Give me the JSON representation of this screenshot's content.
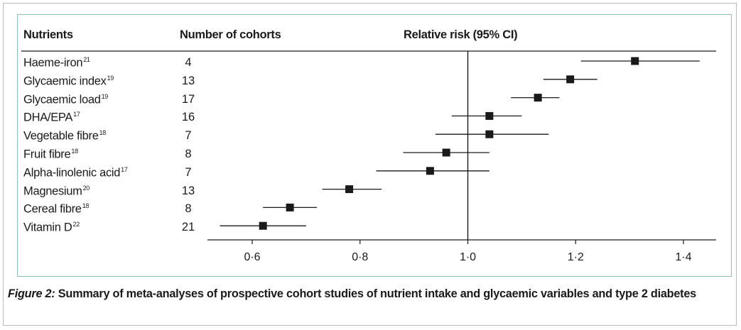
{
  "headers": {
    "nutrients": "Nutrients",
    "cohorts": "Number of cohorts",
    "rr": "Relative risk (95% CI)"
  },
  "rows": [
    {
      "name": "Haeme-iron",
      "ref": "21",
      "cohorts": "4"
    },
    {
      "name": "Glycaemic index",
      "ref": "19",
      "cohorts": "13"
    },
    {
      "name": "Glycaemic load",
      "ref": "19",
      "cohorts": "17"
    },
    {
      "name": "DHA/EPA",
      "ref": "17",
      "cohorts": "16"
    },
    {
      "name": "Vegetable fibre",
      "ref": "18",
      "cohorts": "7"
    },
    {
      "name": "Fruit fibre",
      "ref": "18",
      "cohorts": "8"
    },
    {
      "name": "Alpha-linolenic acid",
      "ref": "17",
      "cohorts": "7"
    },
    {
      "name": "Magnesium",
      "ref": "20",
      "cohorts": "13"
    },
    {
      "name": "Cereal fibre",
      "ref": "18",
      "cohorts": "8"
    },
    {
      "name": "Vitamin D",
      "ref": "22",
      "cohorts": "21"
    }
  ],
  "caption": {
    "label": "Figure 2:",
    "text": "Summary of meta-analyses of prospective cohort studies of nutrient intake and glycaemic variables and type 2 diabetes"
  },
  "chart_data": {
    "type": "forest",
    "xlim": [
      0.52,
      1.46
    ],
    "reference_line": 1.0,
    "ticks": [
      0.6,
      0.8,
      1.0,
      1.2,
      1.4
    ],
    "tick_labels": [
      "0·6",
      "0·8",
      "1·0",
      "1·2",
      "1·4"
    ],
    "categories": [
      "Haeme-iron",
      "Glycaemic index",
      "Glycaemic load",
      "DHA/EPA",
      "Vegetable fibre",
      "Fruit fibre",
      "Alpha-linolenic acid",
      "Magnesium",
      "Cereal fibre",
      "Vitamin D"
    ],
    "estimates": [
      1.31,
      1.19,
      1.13,
      1.04,
      1.04,
      0.96,
      0.93,
      0.78,
      0.67,
      0.62
    ],
    "ci_lower": [
      1.21,
      1.14,
      1.08,
      0.97,
      0.94,
      0.88,
      0.83,
      0.73,
      0.62,
      0.54
    ],
    "ci_upper": [
      1.43,
      1.24,
      1.17,
      1.1,
      1.15,
      1.04,
      1.04,
      0.84,
      0.72,
      0.7
    ],
    "colors": {
      "marker": "#1a1a1a",
      "line": "#1a1a1a",
      "frame": "#8fbfb3"
    }
  }
}
